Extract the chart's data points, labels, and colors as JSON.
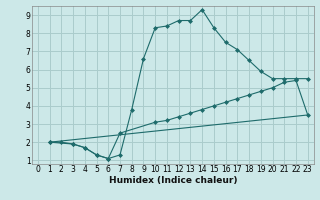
{
  "xlabel": "Humidex (Indice chaleur)",
  "bg_color": "#cce8e8",
  "grid_color": "#aacccc",
  "line_color": "#1e6b6b",
  "xlim": [
    -0.5,
    23.5
  ],
  "ylim": [
    0.8,
    9.5
  ],
  "xticks": [
    0,
    1,
    2,
    3,
    4,
    5,
    6,
    7,
    8,
    9,
    10,
    11,
    12,
    13,
    14,
    15,
    16,
    17,
    18,
    19,
    20,
    21,
    22,
    23
  ],
  "yticks": [
    1,
    2,
    3,
    4,
    5,
    6,
    7,
    8,
    9
  ],
  "series1_x": [
    1,
    2,
    3,
    4,
    5,
    6,
    7,
    8,
    9,
    10,
    11,
    12,
    13,
    14,
    15,
    16,
    17,
    18,
    19,
    20,
    21,
    22,
    23
  ],
  "series1_y": [
    2.0,
    2.0,
    1.9,
    1.7,
    1.3,
    1.1,
    1.3,
    3.8,
    6.6,
    8.3,
    8.4,
    8.7,
    8.7,
    9.3,
    8.3,
    7.5,
    7.1,
    6.5,
    5.9,
    5.5,
    5.5,
    5.5,
    5.5
  ],
  "series2_x": [
    1,
    3,
    4,
    5,
    6,
    7,
    10,
    11,
    12,
    13,
    14,
    15,
    16,
    17,
    18,
    19,
    20,
    21,
    22,
    23
  ],
  "series2_y": [
    2.0,
    1.9,
    1.7,
    1.3,
    1.1,
    2.5,
    3.1,
    3.2,
    3.4,
    3.6,
    3.8,
    4.0,
    4.2,
    4.4,
    4.6,
    4.8,
    5.0,
    5.3,
    5.4,
    3.5
  ],
  "series3_x": [
    1,
    23
  ],
  "series3_y": [
    2.0,
    3.5
  ],
  "xlabel_fontsize": 6.5,
  "tick_fontsize": 5.5
}
